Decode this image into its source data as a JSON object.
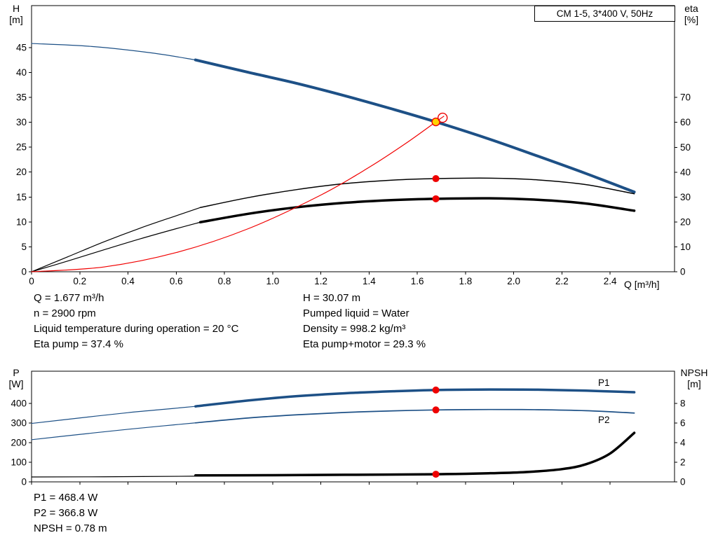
{
  "title_box": "CM 1-5, 3*400 V, 50Hz",
  "colors": {
    "curve_blue": "#1d5086",
    "marker_red": "#ee0000",
    "duty_yellow": "#ffd400",
    "black": "#000000"
  },
  "axis_labels": {
    "top_left": [
      "H",
      "[m]"
    ],
    "top_right": [
      "eta",
      "[%]"
    ],
    "bottom_left": [
      "P",
      "[W]"
    ],
    "bottom_right": [
      "NPSH",
      "[m]"
    ],
    "x": "Q [m³/h]"
  },
  "info_top": {
    "left": [
      "Q = 1.677 m³/h",
      "n = 2900 rpm",
      "Liquid temperature during operation = 20 °C",
      "Eta pump = 37.4 %"
    ],
    "right": [
      "H = 30.07 m",
      "Pumped liquid = Water",
      "Density = 998.2 kg/m³",
      "Eta pump+motor = 29.3 %"
    ]
  },
  "info_bottom": [
    "P1 = 468.4 W",
    "P2 = 366.8 W",
    "NPSH = 0.78 m"
  ],
  "chart_data": [
    {
      "type": "line",
      "title": "Pump performance curve CM 1-5",
      "x_axis": {
        "label": "Q [m³/h]",
        "range": [
          0,
          2.667
        ],
        "ticks": [
          0,
          0.2,
          0.4,
          0.6,
          0.8,
          1.0,
          1.2,
          1.4,
          1.6,
          1.8,
          2.0,
          2.2,
          2.4
        ]
      },
      "y_left": {
        "label": "H [m]",
        "range": [
          0,
          53.4
        ],
        "ticks": [
          0,
          5,
          10,
          15,
          20,
          25,
          30,
          35,
          40,
          45
        ]
      },
      "y_right": {
        "label": "eta [%]",
        "range": [
          0,
          106.9
        ],
        "ticks": [
          0,
          10,
          20,
          30,
          40,
          50,
          60,
          70
        ]
      },
      "grid": false,
      "series": [
        {
          "name": "head-curve-lead",
          "axis": "left",
          "color": "#1d5086",
          "width": 1.2,
          "points": [
            [
              0,
              45.8
            ],
            [
              0.25,
              45.2
            ],
            [
              0.5,
              43.9
            ],
            [
              0.68,
              42.5
            ]
          ]
        },
        {
          "name": "head-curve",
          "axis": "left",
          "color": "#1d5086",
          "width": 4,
          "points": [
            [
              0.68,
              42.5
            ],
            [
              0.9,
              40.0
            ],
            [
              1.1,
              37.8
            ],
            [
              1.3,
              35.3
            ],
            [
              1.5,
              32.6
            ],
            [
              1.677,
              30.07
            ],
            [
              1.9,
              26.6
            ],
            [
              2.1,
              23.2
            ],
            [
              2.3,
              19.7
            ],
            [
              2.5,
              16.0
            ]
          ]
        },
        {
          "name": "eta-pump-lead",
          "axis": "right",
          "color": "#000000",
          "width": 1.2,
          "points": [
            [
              0,
              0
            ],
            [
              0.15,
              6
            ],
            [
              0.3,
              12
            ],
            [
              0.45,
              17.5
            ],
            [
              0.6,
              22.5
            ],
            [
              0.7,
              25.8
            ]
          ]
        },
        {
          "name": "eta-pump-curve",
          "axis": "right",
          "color": "#000000",
          "width": 1.5,
          "points": [
            [
              0.7,
              25.8
            ],
            [
              0.9,
              29.8
            ],
            [
              1.1,
              33.0
            ],
            [
              1.3,
              35.4
            ],
            [
              1.5,
              36.8
            ],
            [
              1.677,
              37.4
            ],
            [
              1.9,
              37.6
            ],
            [
              2.1,
              36.9
            ],
            [
              2.3,
              35.0
            ],
            [
              2.5,
              31.3
            ]
          ]
        },
        {
          "name": "eta-pump-motor-lead",
          "axis": "right",
          "color": "#000000",
          "width": 1.2,
          "points": [
            [
              0,
              0
            ],
            [
              0.15,
              4.3
            ],
            [
              0.3,
              8.8
            ],
            [
              0.45,
              13.2
            ],
            [
              0.6,
              17.3
            ],
            [
              0.7,
              19.9
            ]
          ]
        },
        {
          "name": "eta-pump-motor-curve",
          "axis": "right",
          "color": "#000000",
          "width": 3.5,
          "points": [
            [
              0.7,
              19.9
            ],
            [
              0.9,
              23.3
            ],
            [
              1.1,
              25.9
            ],
            [
              1.3,
              27.7
            ],
            [
              1.5,
              28.8
            ],
            [
              1.677,
              29.3
            ],
            [
              1.9,
              29.5
            ],
            [
              2.1,
              28.9
            ],
            [
              2.3,
              27.4
            ],
            [
              2.5,
              24.5
            ]
          ]
        },
        {
          "name": "system-curve",
          "axis": "left",
          "color": "#f10000",
          "width": 1.2,
          "points": [
            [
              0,
              0
            ],
            [
              0.3,
              0.96
            ],
            [
              0.6,
              3.85
            ],
            [
              0.9,
              8.66
            ],
            [
              1.2,
              15.39
            ],
            [
              1.4,
              20.95
            ],
            [
              1.55,
              25.68
            ],
            [
              1.677,
              30.07
            ],
            [
              1.71,
              31.2
            ]
          ]
        }
      ],
      "markers": [
        {
          "name": "duty-point",
          "axis": "left",
          "x": 1.677,
          "y": 30.07,
          "style": "duty"
        },
        {
          "name": "duty-ring",
          "axis": "left",
          "x": 1.705,
          "y": 30.9,
          "style": "ring"
        },
        {
          "name": "eta-pump-point",
          "axis": "right",
          "x": 1.677,
          "y": 37.4,
          "style": "dot"
        },
        {
          "name": "eta-pump-motor-point",
          "axis": "right",
          "x": 1.677,
          "y": 29.3,
          "style": "dot"
        }
      ],
      "annotations": []
    },
    {
      "type": "line",
      "title": "Power and NPSH curves",
      "x_axis": {
        "label": "",
        "range": [
          0,
          2.667
        ],
        "ticks": [
          0,
          0.2,
          0.4,
          0.6,
          0.8,
          1.0,
          1.2,
          1.4,
          1.6,
          1.8,
          2.0,
          2.2,
          2.4
        ]
      },
      "y_left": {
        "label": "P [W]",
        "range": [
          0,
          564.3
        ],
        "ticks": [
          0,
          100,
          200,
          300,
          400
        ]
      },
      "y_right": {
        "label": "NPSH [m]",
        "range": [
          0,
          11.29
        ],
        "ticks": [
          0,
          2,
          4,
          6,
          8
        ]
      },
      "grid": false,
      "series": [
        {
          "name": "p1-curve-lead",
          "axis": "left",
          "color": "#1d5086",
          "width": 1.2,
          "points": [
            [
              0,
              298
            ],
            [
              0.2,
              326
            ],
            [
              0.4,
              353
            ],
            [
              0.55,
              370
            ],
            [
              0.68,
              385
            ]
          ]
        },
        {
          "name": "p1-curve",
          "axis": "left",
          "color": "#1d5086",
          "width": 3.5,
          "points": [
            [
              0.68,
              385
            ],
            [
              0.9,
              415
            ],
            [
              1.1,
              437
            ],
            [
              1.3,
              452
            ],
            [
              1.5,
              462
            ],
            [
              1.677,
              468.4
            ],
            [
              1.9,
              471
            ],
            [
              2.1,
              470
            ],
            [
              2.3,
              465
            ],
            [
              2.5,
              457
            ]
          ]
        },
        {
          "name": "p2-curve-lead",
          "axis": "left",
          "color": "#1d5086",
          "width": 1.2,
          "points": [
            [
              0,
              215
            ],
            [
              0.2,
              242
            ],
            [
              0.4,
              268
            ],
            [
              0.55,
              286
            ],
            [
              0.68,
              301
            ]
          ]
        },
        {
          "name": "p2-curve",
          "axis": "left",
          "color": "#1d5086",
          "width": 1.7,
          "points": [
            [
              0.68,
              301
            ],
            [
              0.9,
              326
            ],
            [
              1.1,
              342
            ],
            [
              1.3,
              354
            ],
            [
              1.5,
              362
            ],
            [
              1.677,
              366.8
            ],
            [
              1.9,
              369
            ],
            [
              2.1,
              368
            ],
            [
              2.3,
              363
            ],
            [
              2.5,
              351
            ]
          ]
        },
        {
          "name": "npsh-curve-lead",
          "axis": "right",
          "color": "#000000",
          "width": 1.2,
          "points": [
            [
              0,
              0.5
            ],
            [
              0.3,
              0.52
            ],
            [
              0.68,
              0.58
            ]
          ]
        },
        {
          "name": "npsh-curve",
          "axis": "right",
          "color": "#000000",
          "width": 3.5,
          "points": [
            [
              0.68,
              0.66
            ],
            [
              1.0,
              0.68
            ],
            [
              1.3,
              0.72
            ],
            [
              1.677,
              0.78
            ],
            [
              1.9,
              0.88
            ],
            [
              2.05,
              1.0
            ],
            [
              2.2,
              1.3
            ],
            [
              2.3,
              1.8
            ],
            [
              2.4,
              2.9
            ],
            [
              2.5,
              5.0
            ]
          ]
        }
      ],
      "markers": [
        {
          "name": "p1-point",
          "axis": "left",
          "x": 1.677,
          "y": 468.4,
          "style": "dot"
        },
        {
          "name": "p2-point",
          "axis": "left",
          "x": 1.677,
          "y": 366.8,
          "style": "dot"
        },
        {
          "name": "npsh-point",
          "axis": "right",
          "x": 1.677,
          "y": 0.78,
          "style": "dot"
        }
      ],
      "annotations": [
        {
          "name": "p1-curve-label",
          "text": "P1",
          "axis": "left",
          "x": 2.35,
          "y": 490,
          "color": "#1d5086"
        },
        {
          "name": "p2-curve-label",
          "text": "P2",
          "axis": "left",
          "x": 2.35,
          "y": 300,
          "color": "#1d5086"
        }
      ]
    }
  ]
}
